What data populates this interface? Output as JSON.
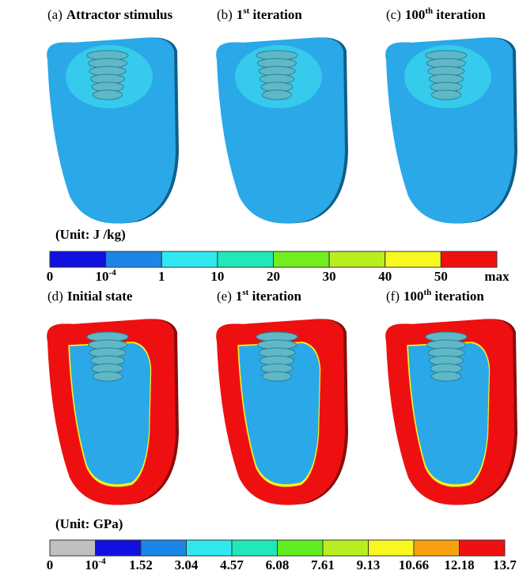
{
  "top_panels": [
    {
      "label": "(a)",
      "title": [
        "Attractor stimulus"
      ]
    },
    {
      "label": "(b)",
      "title": [
        "1",
        "st",
        " iteration"
      ]
    },
    {
      "label": "(c)",
      "title": [
        "100",
        "th",
        " iteration"
      ]
    }
  ],
  "top_colorbar": {
    "unit": "(Unit: J /kg)",
    "colors": [
      "#1010e0",
      "#1c86e8",
      "#30e8f0",
      "#20e8b8",
      "#70ee20",
      "#b8ee20",
      "#f8f820",
      "#f01010"
    ],
    "labels": [
      "0",
      [
        "10",
        "-4"
      ],
      "1",
      "10",
      "20",
      "30",
      "40",
      "50",
      "max"
    ]
  },
  "bottom_panels": [
    {
      "label": "(d)",
      "title": [
        "Initial state"
      ]
    },
    {
      "label": "(e)",
      "title": [
        "1",
        "st",
        " iteration"
      ]
    },
    {
      "label": "(f)",
      "title": [
        "100",
        "th",
        " iteration"
      ]
    }
  ],
  "bottom_colorbar": {
    "unit": "(Unit: GPa)",
    "colors": [
      "#c0c0c0",
      "#1010e0",
      "#1c86e8",
      "#30e8f0",
      "#20e8b8",
      "#60ee20",
      "#b8ee20",
      "#f8f820",
      "#f8a010",
      "#f01010"
    ],
    "labels": [
      "0",
      [
        "10",
        "-4"
      ],
      "1.52",
      "3.04",
      "4.57",
      "6.08",
      "7.61",
      "9.13",
      "10.66",
      "12.18",
      "13.7"
    ]
  }
}
